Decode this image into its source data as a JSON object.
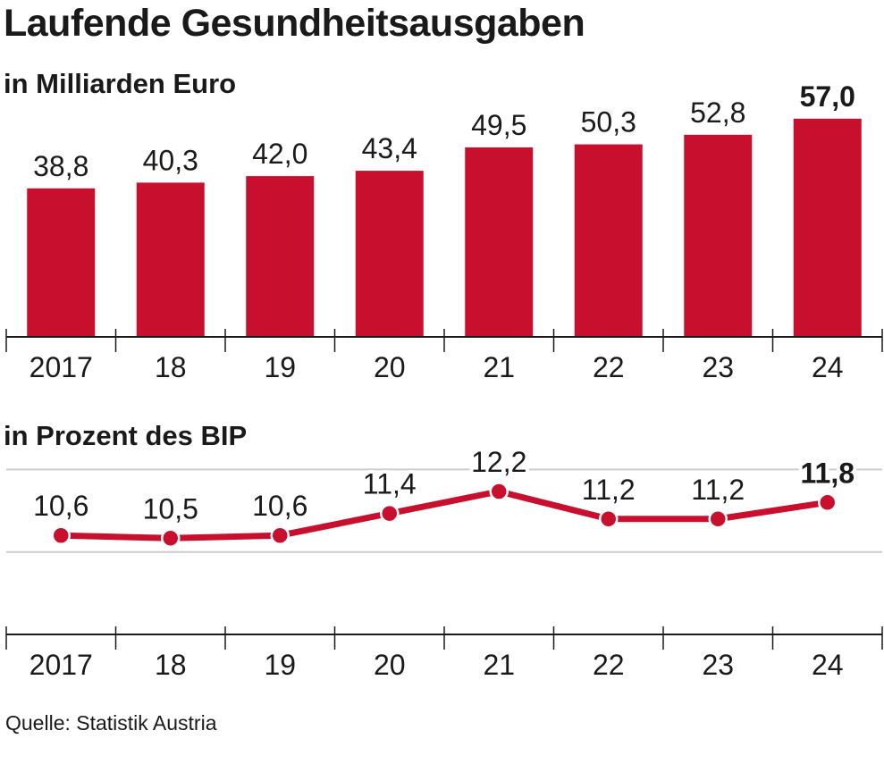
{
  "title": "Laufende Gesundheitsausgaben",
  "source": "Quelle: Statistik Austria",
  "chart_data": [
    {
      "type": "bar",
      "subtitle": "in Milliarden Euro",
      "categories": [
        "2017",
        "18",
        "19",
        "20",
        "21",
        "22",
        "23",
        "24"
      ],
      "values": [
        38.8,
        40.3,
        42.0,
        43.4,
        49.5,
        50.3,
        52.8,
        57.0
      ],
      "labels": [
        "38,8",
        "40,3",
        "42,0",
        "43,4",
        "49,5",
        "50,3",
        "52,8",
        "57,0"
      ],
      "highlight_index": 7,
      "ylim": [
        0,
        60
      ],
      "color": "#c8102e",
      "grid": false
    },
    {
      "type": "line",
      "subtitle": "in Prozent des BIP",
      "categories": [
        "2017",
        "18",
        "19",
        "20",
        "21",
        "22",
        "23",
        "24"
      ],
      "values": [
        10.6,
        10.5,
        10.6,
        11.4,
        12.2,
        11.2,
        11.2,
        11.8
      ],
      "labels": [
        "10,6",
        "10,5",
        "10,6",
        "11,4",
        "12,2",
        "11,2",
        "11,2",
        "11,8"
      ],
      "highlight_index": 7,
      "ylim": [
        7,
        13.5
      ],
      "gridlines": [
        10,
        13
      ],
      "color": "#c8102e",
      "grid": true
    }
  ]
}
